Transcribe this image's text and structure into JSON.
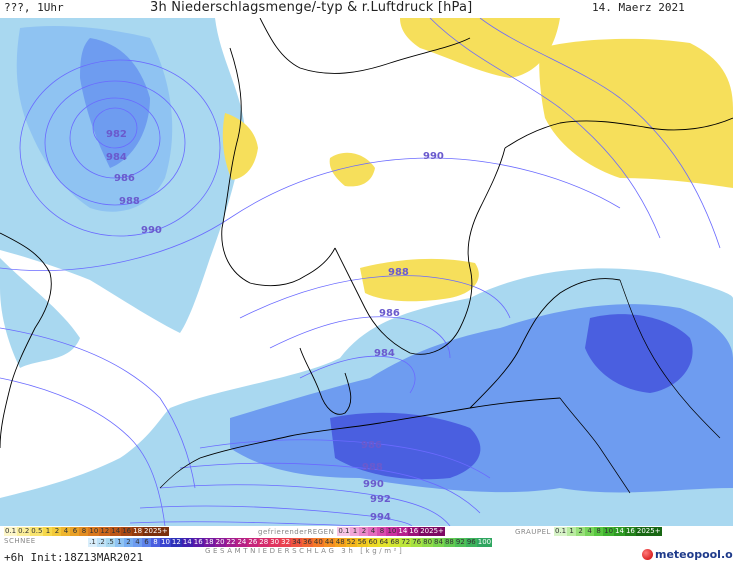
{
  "header": {
    "left_text": "???, 1Uhr",
    "title": "3h Niederschlagsmenge/-typ & r.Luftdruck [hPa]",
    "date": "14. Maerz 2021"
  },
  "map": {
    "isobar_labels": [
      "982",
      "984",
      "986",
      "988",
      "990",
      "990",
      "988",
      "986",
      "984",
      "986",
      "988",
      "990",
      "992",
      "994"
    ],
    "colors": {
      "rain_light": "#a9d8f0",
      "rain_medium": "#6e9cf0",
      "rain_heavy": "#4a5fe0",
      "snow": "#f6df5b",
      "isobar": "#6a6aff",
      "coast": "#000000"
    }
  },
  "legend": {
    "snow_label": "SCHNEE",
    "snow_values": [
      "0.1",
      "0.2",
      "0.5",
      "1",
      "2",
      "4",
      "6",
      "8",
      "10",
      "12",
      "14",
      "16",
      "18",
      "2025+"
    ],
    "freezing_rain_label": "gefrierenderREGEN",
    "freezing_rain_values": [
      "0.1",
      "1",
      "2",
      "4",
      "8",
      "10",
      "14",
      "16",
      "2025+"
    ],
    "graupel_label": "GRAUPEL",
    "graupel_values": [
      "0.1",
      "1",
      "2",
      "4",
      "8",
      "10",
      "14",
      "16",
      "2025+"
    ],
    "precip_values": [
      ".1",
      ".2",
      ".5",
      "1",
      "2",
      "4",
      "6",
      "8",
      "10",
      "12",
      "14",
      "16",
      "18",
      "20",
      "22",
      "24",
      "26",
      "28",
      "30",
      "32",
      "34",
      "36",
      "40",
      "44",
      "48",
      "52",
      "56",
      "60",
      "64",
      "68",
      "72",
      "76",
      "80",
      "84",
      "88",
      "92",
      "96",
      "100"
    ],
    "precip_label": "GESAMTNIEDERSCHLAG 3h [kg/m²]"
  },
  "footer": {
    "run_info": "+6h Init:18Z13MAR2021",
    "brand": "meteopool.org"
  }
}
